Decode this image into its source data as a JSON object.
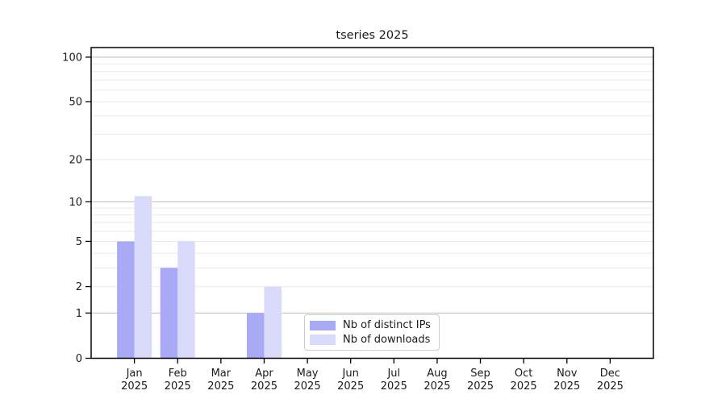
{
  "chart_data": {
    "type": "bar",
    "title": "tseries 2025",
    "categories": [
      "Jan 2025",
      "Feb 2025",
      "Mar 2025",
      "Apr 2025",
      "May 2025",
      "Jun 2025",
      "Jul 2025",
      "Aug 2025",
      "Sep 2025",
      "Oct 2025",
      "Nov 2025",
      "Dec 2025"
    ],
    "series": [
      {
        "name": "Nb of distinct IPs",
        "color": "#a9a9f6",
        "values": [
          5,
          3,
          0,
          1,
          0,
          0,
          0,
          0,
          0,
          0,
          0,
          0
        ]
      },
      {
        "name": "Nb of downloads",
        "color": "#d9d9f9",
        "values": [
          11,
          5,
          0,
          2,
          0,
          0,
          0,
          0,
          0,
          0,
          0,
          0
        ]
      }
    ],
    "yscale": "log1p",
    "ylim": [
      0,
      115
    ],
    "ytick_labels": [
      0,
      1,
      2,
      5,
      10,
      20,
      50,
      100
    ],
    "major_gridlines": [
      1,
      10,
      100
    ],
    "minor_gridlines": [
      2,
      3,
      4,
      5,
      6,
      7,
      8,
      9,
      20,
      30,
      40,
      50,
      60,
      70,
      80,
      90
    ],
    "grid": true,
    "legend_position": "bottom-center",
    "xlabel": "",
    "ylabel": ""
  },
  "colors": {
    "axis": "#000000",
    "grid_major": "#c3c3c3",
    "grid_minor": "#ebebeb",
    "text": "#1a1a1a",
    "legend_border": "#cccccc",
    "background": "#ffffff"
  }
}
